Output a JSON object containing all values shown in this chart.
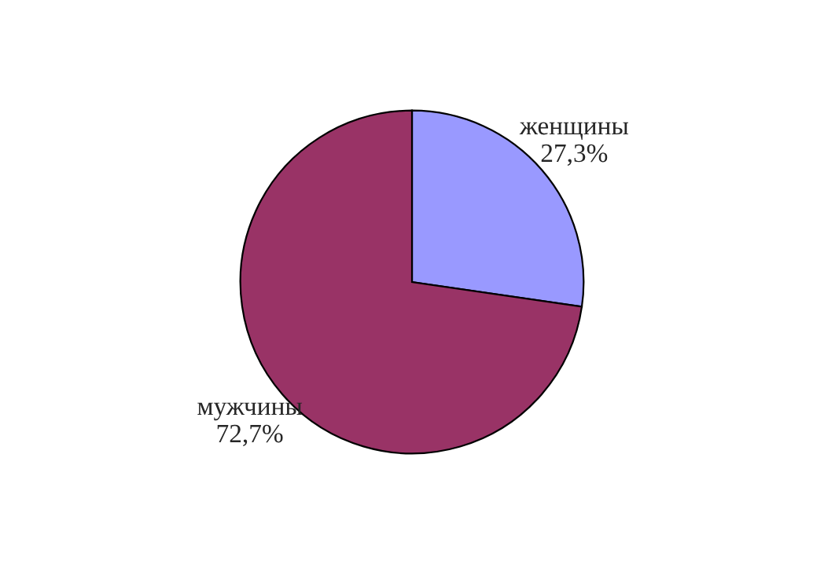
{
  "chart_data": {
    "type": "pie",
    "categories": [
      "женщины",
      "мужчины"
    ],
    "values": [
      27.3,
      72.7
    ],
    "value_labels": [
      "27,3%",
      "72,7%"
    ],
    "colors": [
      "#9999ff",
      "#993366"
    ]
  }
}
